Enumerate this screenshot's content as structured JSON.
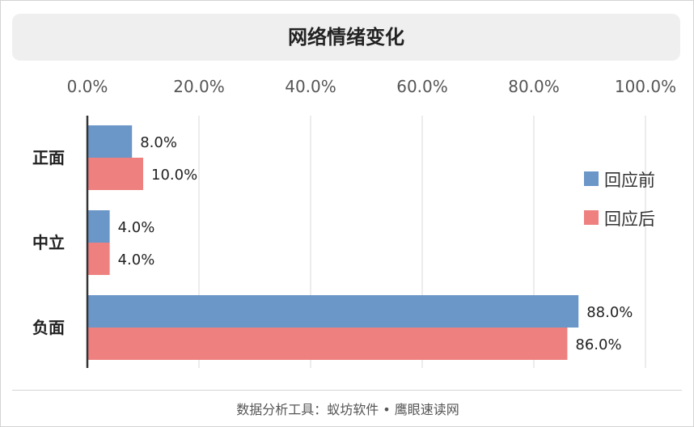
{
  "title": "网络情绪变化",
  "footer": "数据分析工具：蚁坊软件 • 鹰眼速读网",
  "chart_data": {
    "type": "bar",
    "orientation": "horizontal",
    "categories": [
      "正面",
      "中立",
      "负面"
    ],
    "series": [
      {
        "name": "回应前",
        "color": "#6a96c8",
        "values": [
          8.0,
          4.0,
          88.0
        ],
        "labels": [
          "8.0%",
          "4.0%",
          "88.0%"
        ]
      },
      {
        "name": "回应后",
        "color": "#ee8080",
        "values": [
          10.0,
          4.0,
          86.0
        ],
        "labels": [
          "10.0%",
          "4.0%",
          "86.0%"
        ]
      }
    ],
    "x_ticks": [
      "0.0%",
      "20.0%",
      "40.0%",
      "60.0%",
      "80.0%",
      "100.0%"
    ],
    "xlim": [
      0,
      100
    ],
    "grid": true,
    "legend_position": "right"
  }
}
